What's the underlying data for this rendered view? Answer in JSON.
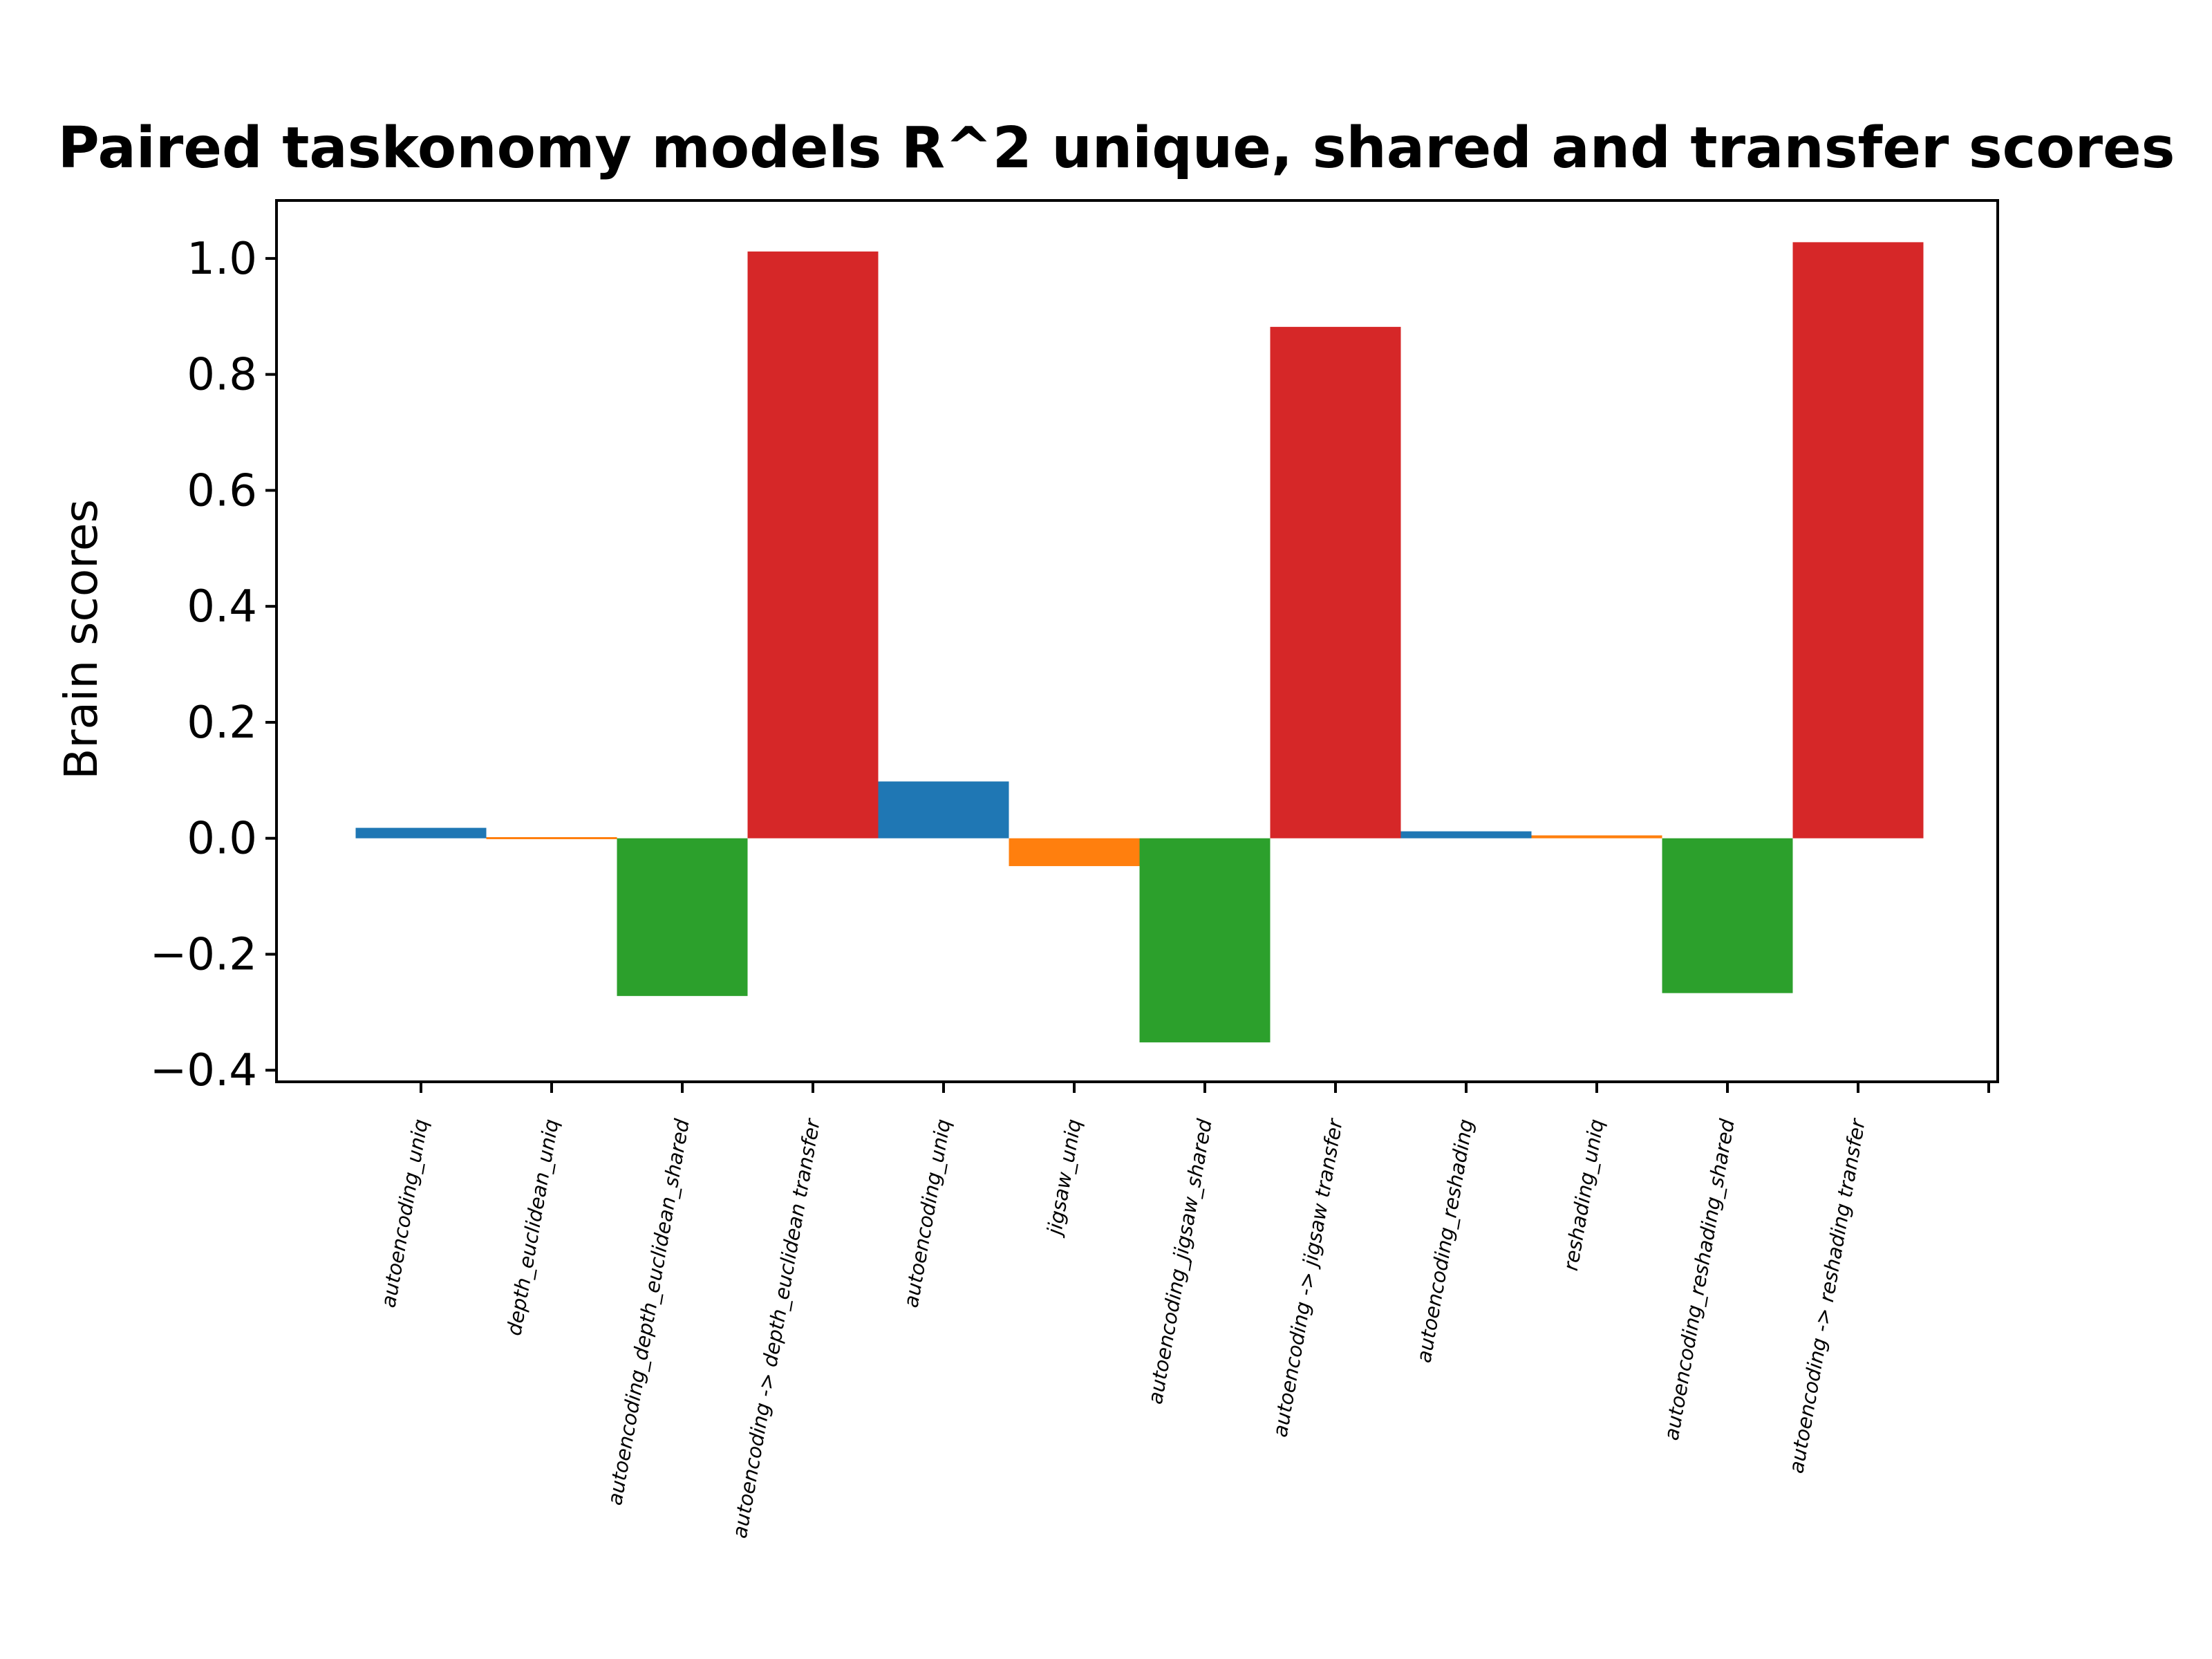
{
  "chart_data": {
    "type": "bar",
    "title": "Paired taskonomy models R^2 unique, shared and transfer scores",
    "xlabel": "",
    "ylabel": "Brain scores",
    "ylim": [
      -0.42,
      1.1
    ],
    "yticks": [
      -0.4,
      -0.2,
      0.0,
      0.2,
      0.4,
      0.6,
      0.8,
      1.0
    ],
    "ytick_labels": [
      "−0.4",
      "−0.2",
      "0.0",
      "0.2",
      "0.4",
      "0.6",
      "0.8",
      "1.0"
    ],
    "grid": false,
    "categories": [
      "autoencoding_uniq",
      "depth_euclidean_uniq",
      "autoencoding_depth_euclidean_shared",
      "autoencoding -> depth_euclidean transfer",
      "autoencoding_uniq",
      "jigsaw_uniq",
      "autoencoding_jigsaw_shared",
      "autoencoding -> jigsaw transfer",
      "autoencoding_reshading",
      "reshading_uniq",
      "autoencoding_reshading_shared",
      "autoencoding -> reshading transfer"
    ],
    "values": [
      0.018,
      0.002,
      -0.272,
      1.012,
      0.098,
      -0.048,
      -0.352,
      0.882,
      0.012,
      0.005,
      -0.267,
      1.028
    ],
    "bar_colors": [
      "#1f77b4",
      "#ff7f0e",
      "#2ca02c",
      "#d62728",
      "#1f77b4",
      "#ff7f0e",
      "#2ca02c",
      "#d62728",
      "#1f77b4",
      "#ff7f0e",
      "#2ca02c",
      "#d62728"
    ]
  }
}
